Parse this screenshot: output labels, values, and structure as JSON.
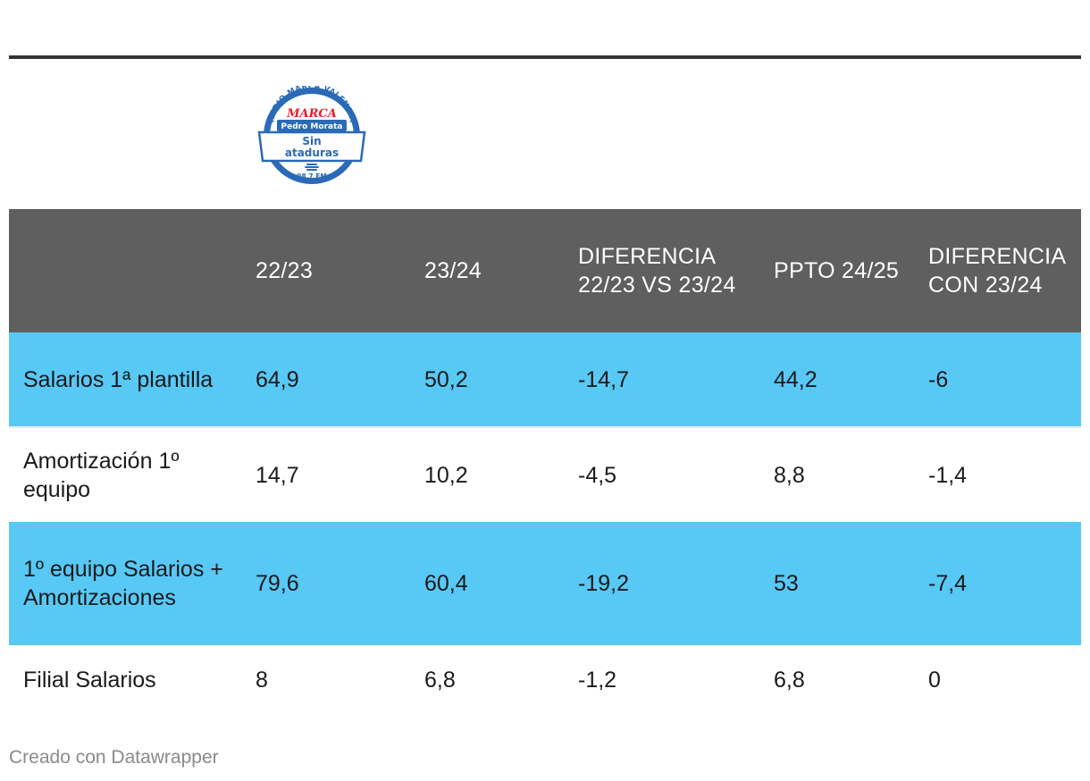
{
  "logo": {
    "arc_text": "RADIO MARCA VALENCIA",
    "brand": "MARCA",
    "host": "Pedro Morata",
    "show_line1": "Sin",
    "show_line2": "ataduras",
    "frequency": "98.7 FM",
    "colors": {
      "blue": "#2a6ab6",
      "red": "#d8232a",
      "white": "#ffffff"
    }
  },
  "chart_data": {
    "type": "table",
    "columns": [
      "",
      "22/23",
      "23/24",
      "DIFERENCIA 22/23 VS 23/24",
      "PPTO 24/25",
      "DIFERENCIA CON 23/24"
    ],
    "rows": [
      [
        "Salarios 1ª plantilla",
        "64,9",
        "50,2",
        "-14,7",
        "44,2",
        "-6"
      ],
      [
        "Amortización 1º equipo",
        "14,7",
        "10,2",
        "-4,5",
        "8,8",
        "-1,4"
      ],
      [
        "1º equipo Salarios + Amortizaciones",
        "79,6",
        "60,4",
        "-19,2",
        "53",
        "-7,4"
      ],
      [
        "Filial Salarios",
        "8",
        "6,8",
        "-1,2",
        "6,8",
        "0"
      ]
    ]
  },
  "colors": {
    "header_bg": "#5f5f5f",
    "highlight_row": "#58c8f5",
    "rule": "#333333"
  },
  "footer": {
    "credit": "Creado con Datawrapper"
  }
}
